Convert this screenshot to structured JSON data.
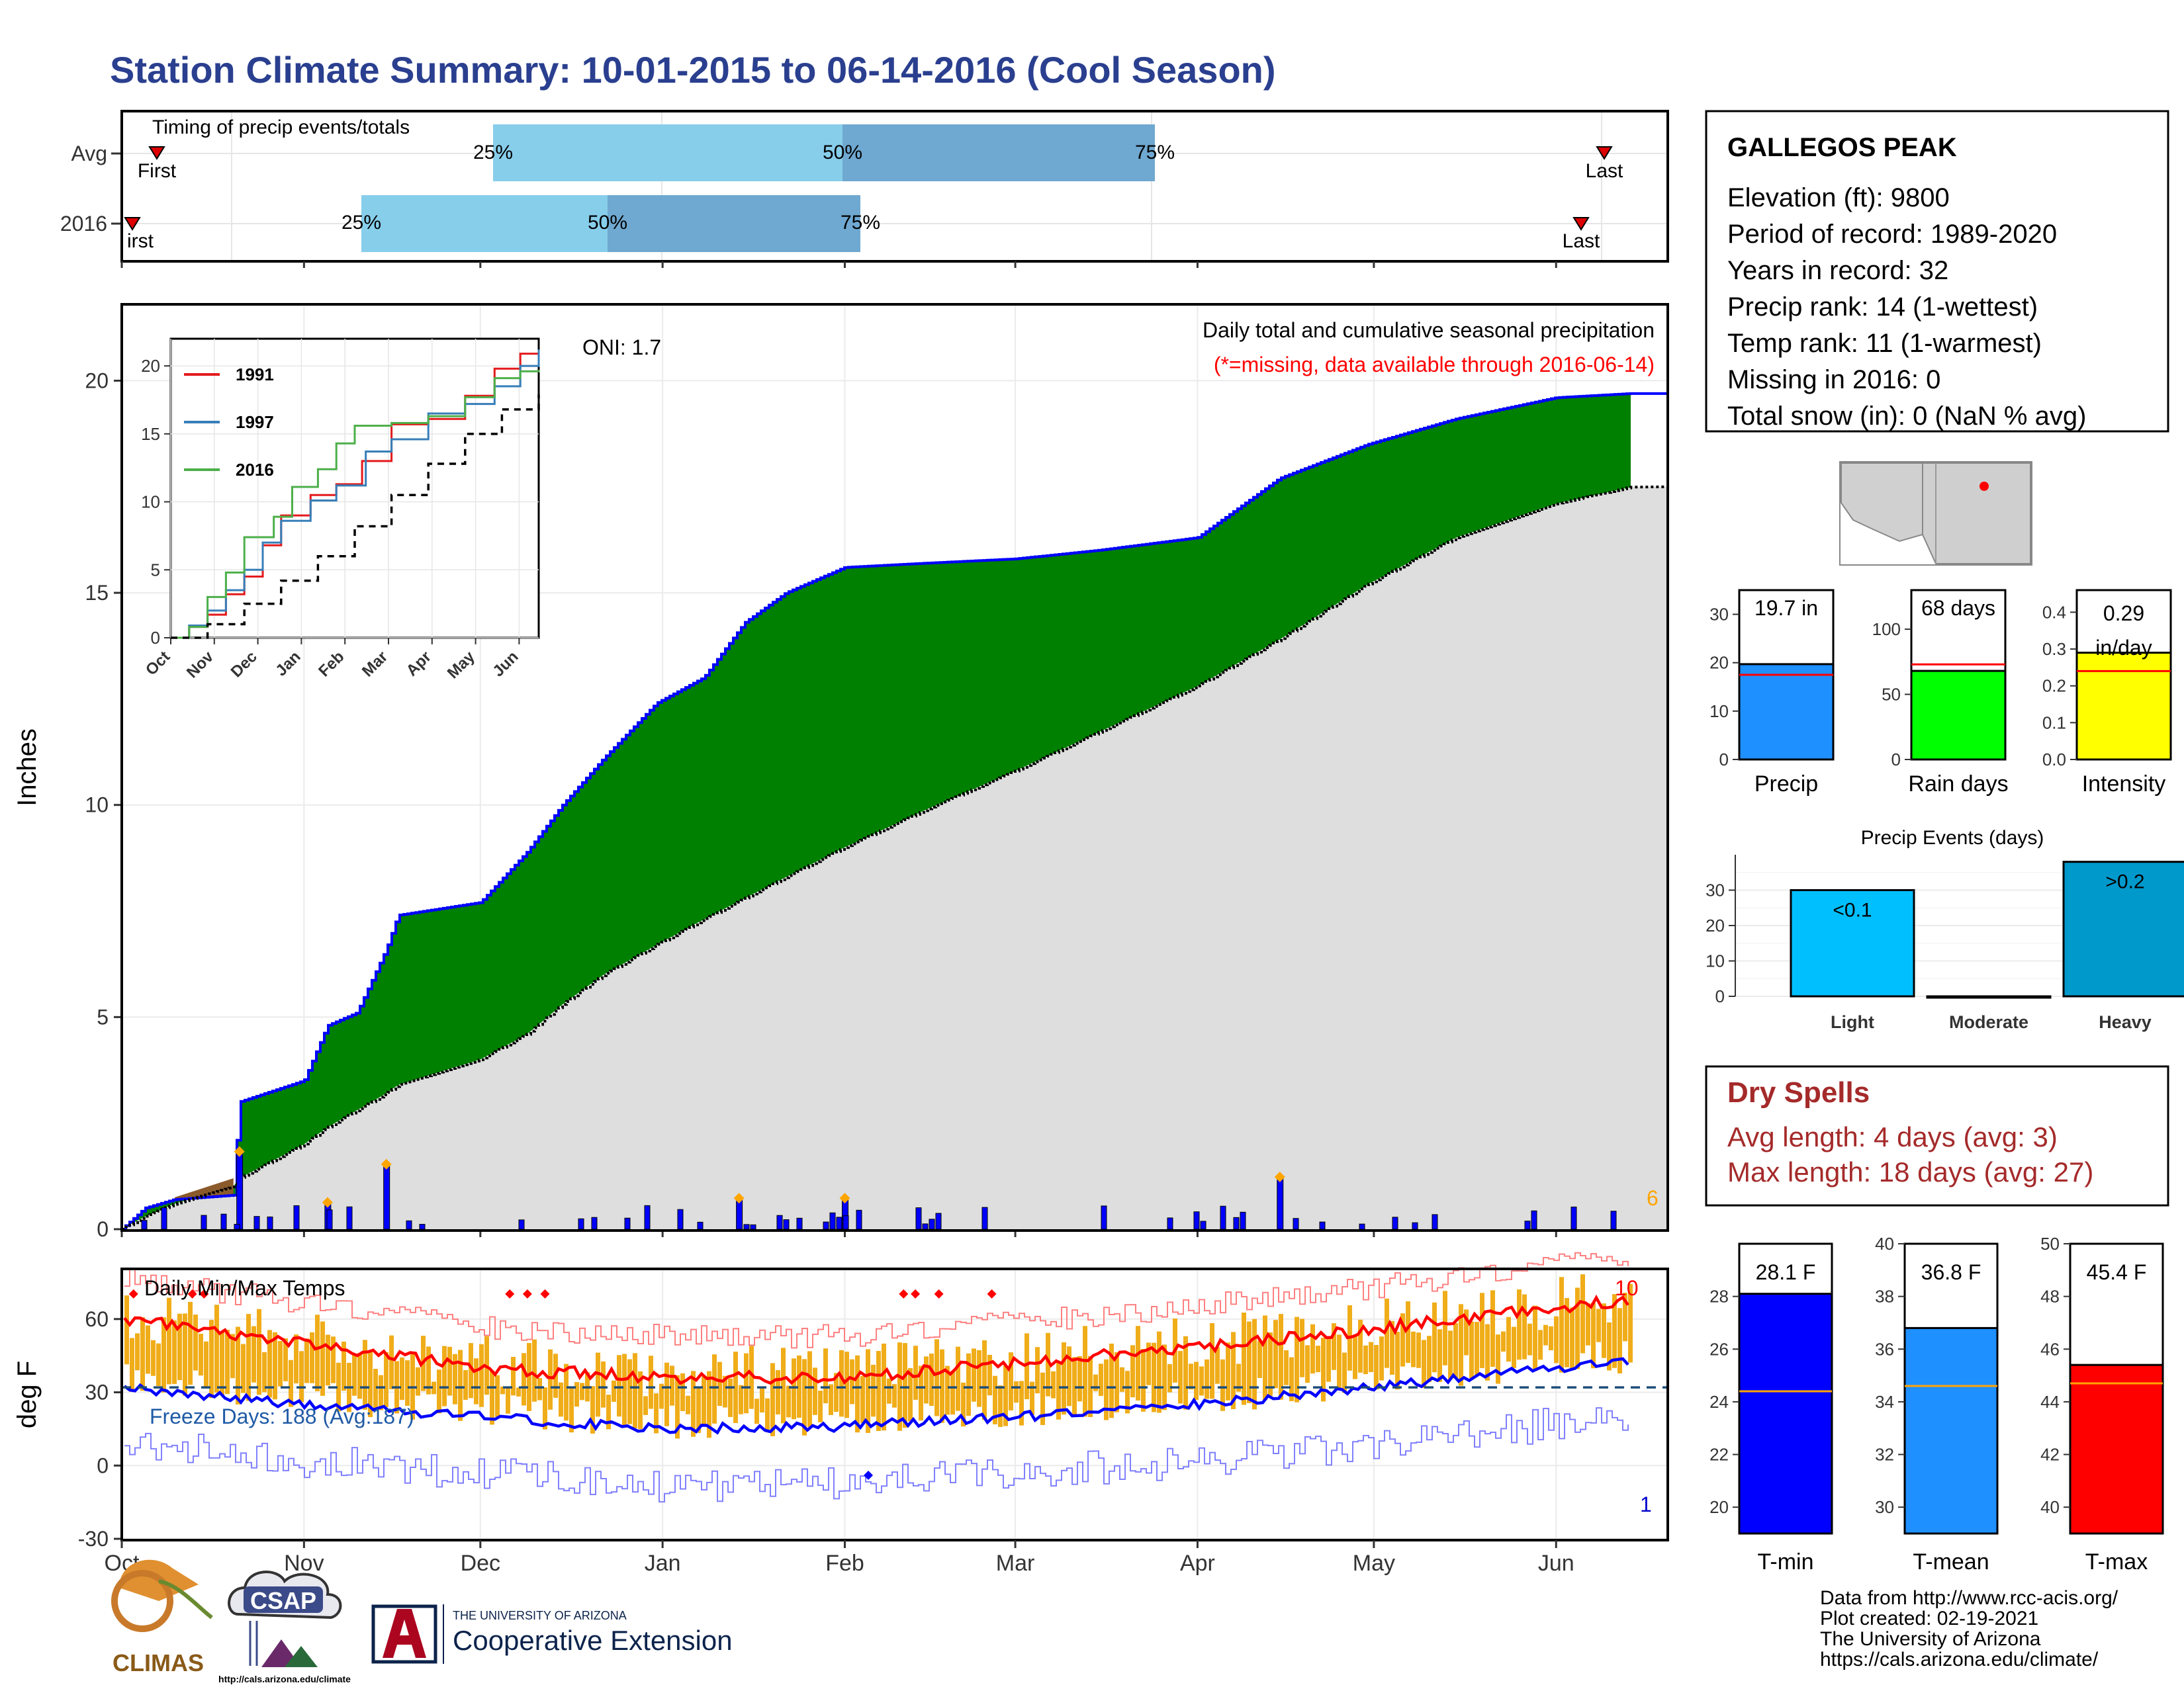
{
  "title": "Station Climate Summary: 10-01-2015 to 06-14-2016 (Cool Season)",
  "colors": {
    "title": "#2a3f8f",
    "green_fill": "#008000",
    "blue_line": "#0000ff",
    "light_blue": "#87ceeb",
    "steel_blue": "#6fa8d0",
    "tmin": "#0000ff",
    "tmean": "#1e90ff",
    "tmax": "#ff0000",
    "rain_days": "#00ff00",
    "intensity": "#ffff00",
    "dry_spells": "#a52a2a",
    "orange_bar": "#f0ad1a",
    "light_events": "#00bfff",
    "heavy_events": "#0099cc"
  },
  "timing": {
    "label": "Timing of precip events/totals",
    "rows": [
      "Avg",
      "2016"
    ],
    "avg": {
      "first": "First",
      "last": "Last",
      "p25": "25%",
      "p50": "50%",
      "p75": "75%"
    },
    "y2016": {
      "first": "irst",
      "last": "Last",
      "p25": "25%",
      "p50": "50%",
      "p75": "75%"
    }
  },
  "station": {
    "name": "GALLEGOS PEAK",
    "lines": [
      "Elevation (ft): 9800",
      "Period of record: 1989-2020",
      "Years in record: 32",
      "Precip rank: 14 (1-wettest)",
      "Temp rank: 11 (1-warmest)",
      "Missing in 2016: 0",
      "Total snow (in): 0 (NaN % avg)"
    ]
  },
  "precip_panel": {
    "ylabel": "Inches",
    "yticks": [
      "0",
      "5",
      "10",
      "15",
      "20"
    ],
    "oni": "ONI: 1.7",
    "heading": "Daily total and cumulative seasonal precipitation",
    "missing_note": "(*=missing, data available through 2016-06-14)",
    "corner_count": "6"
  },
  "months": [
    "Oct",
    "Nov",
    "Dec",
    "Jan",
    "Feb",
    "Mar",
    "Apr",
    "May",
    "Jun"
  ],
  "inset": {
    "yticks": [
      "0",
      "5",
      "10",
      "15",
      "20"
    ],
    "legend": [
      "1991",
      "1997",
      "2016"
    ],
    "legend_colors": [
      "#e41a1c",
      "#377eb8",
      "#4daf4a"
    ]
  },
  "temp_panel": {
    "ylabel": "deg F",
    "label": "Daily Min/Max Temps",
    "yticks": [
      "-30",
      "0",
      "30",
      "60"
    ],
    "freeze": "Freeze Days: 188 (Avg:187)",
    "count_high": "10",
    "count_low": "1"
  },
  "summary_bars": [
    {
      "label": "Precip",
      "value_label": "19.7 in",
      "value": 19.7,
      "avg": 17.5,
      "yticks": [
        "0",
        "10",
        "20",
        "30"
      ],
      "ymax": 35
    },
    {
      "label": "Rain days",
      "value_label": "68 days",
      "value": 68,
      "avg": 73,
      "yticks": [
        "0",
        "50",
        "100"
      ],
      "ymax": 130
    },
    {
      "label": "Intensity",
      "value_label": "0.29\nin/day",
      "value_line1": "0.29",
      "value_line2": "in/day",
      "value": 0.29,
      "avg": 0.24,
      "yticks": [
        "0.0",
        "0.1",
        "0.2",
        "0.3",
        "0.4"
      ],
      "ymax": 0.46
    }
  ],
  "precip_events": {
    "title": "Precip Events (days)",
    "categories": [
      "Light",
      "Moderate",
      "Heavy"
    ],
    "values": [
      30,
      0,
      38
    ],
    "labels": [
      "<0.1",
      "",
      ">0.2"
    ],
    "yticks": [
      "0",
      "10",
      "20",
      "30"
    ]
  },
  "dry_spells": {
    "title": "Dry Spells",
    "avg": "Avg length: 4 days (avg: 3)",
    "max": "Max length: 18 days (avg: 27)"
  },
  "temp_bars": [
    {
      "label": "T-min",
      "value_label": "28.1 F",
      "value": 28.1,
      "avg": 24.4,
      "ymin": 19,
      "ymax": 30,
      "yticks": [
        "20",
        "22",
        "24",
        "26",
        "28"
      ]
    },
    {
      "label": "T-mean",
      "value_label": "36.8 F",
      "value": 36.8,
      "avg": 34.6,
      "ymin": 29,
      "ymax": 40,
      "yticks": [
        "30",
        "32",
        "34",
        "36",
        "38",
        "40"
      ]
    },
    {
      "label": "T-max",
      "value_label": "45.4 F",
      "value": 45.4,
      "avg": 44.7,
      "ymin": 39,
      "ymax": 50,
      "yticks": [
        "40",
        "42",
        "44",
        "46",
        "48",
        "50"
      ]
    }
  ],
  "footer": {
    "lines": [
      "Data from http://www.rcc-acis.org/",
      "Plot created: 02-19-2021",
      "The University of Arizona",
      "https://cals.arizona.edu/climate/"
    ],
    "climas": "CLIMAS",
    "csap": "CSAP",
    "csap_url": "http://cals.arizona.edu/climate",
    "ua_small": "THE UNIVERSITY OF ARIZONA",
    "ua_large": "Cooperative Extension"
  },
  "chart_data": [
    {
      "type": "area",
      "title": "Daily total and cumulative seasonal precipitation",
      "ylabel": "Inches",
      "ylim": [
        0,
        21.8
      ],
      "x": [
        "2015-10-01",
        "2015-10-05",
        "2015-10-10",
        "2015-10-20",
        "2015-10-21",
        "2015-11-01",
        "2015-11-05",
        "2015-11-10",
        "2015-11-15",
        "2015-11-17",
        "2015-12-01",
        "2015-12-09",
        "2015-12-15",
        "2015-12-22",
        "2015-12-31",
        "2016-01-08",
        "2016-01-15",
        "2016-01-22",
        "2016-02-01",
        "2016-02-15",
        "2016-03-01",
        "2016-03-15",
        "2016-04-01",
        "2016-04-15",
        "2016-04-30",
        "2016-05-15",
        "2016-06-01",
        "2016-06-14"
      ],
      "series": [
        {
          "name": "2016",
          "values": [
            0.0,
            0.5,
            0.7,
            0.8,
            3.0,
            3.5,
            4.8,
            5.1,
            6.6,
            7.4,
            7.7,
            8.9,
            10.0,
            11.1,
            12.4,
            13.0,
            14.3,
            15.0,
            15.6,
            15.7,
            15.8,
            16.0,
            16.3,
            17.7,
            18.5,
            19.1,
            19.6,
            19.7
          ]
        },
        {
          "name": "Average",
          "values": [
            0.0,
            0.3,
            0.6,
            1.0,
            1.2,
            2.0,
            2.4,
            2.8,
            3.2,
            3.4,
            4.0,
            4.6,
            5.3,
            6.0,
            6.7,
            7.3,
            7.8,
            8.3,
            9.0,
            9.9,
            10.8,
            11.7,
            12.8,
            13.9,
            15.2,
            16.3,
            17.1,
            17.5
          ]
        }
      ],
      "daily_bars": [
        {
          "date": "2015-10-21",
          "value": 1.8
        },
        {
          "date": "2015-11-05",
          "value": 0.6
        },
        {
          "date": "2015-11-15",
          "value": 1.5
        },
        {
          "date": "2016-01-14",
          "value": 0.7
        },
        {
          "date": "2016-02-01",
          "value": 0.7
        },
        {
          "date": "2016-04-15",
          "value": 1.2
        }
      ]
    },
    {
      "type": "line",
      "title": "Daily Min/Max Temps",
      "ylabel": "deg F",
      "ylim": [
        -30,
        80
      ],
      "x": [
        "2015-10-01",
        "2015-11-01",
        "2015-12-01",
        "2016-01-01",
        "2016-02-01",
        "2016-03-01",
        "2016-04-01",
        "2016-05-01",
        "2016-06-01",
        "2016-06-14"
      ],
      "series": [
        {
          "name": "avg max",
          "values": [
            60,
            50,
            40,
            36,
            36,
            42,
            48,
            56,
            65,
            68
          ]
        },
        {
          "name": "avg min",
          "values": [
            32,
            25,
            20,
            15,
            16,
            20,
            25,
            32,
            40,
            42
          ]
        }
      ],
      "freeze_line": 32
    }
  ]
}
